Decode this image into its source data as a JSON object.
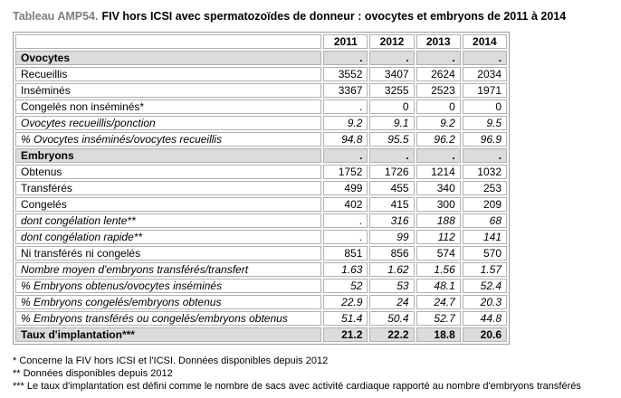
{
  "title": {
    "prefix": "Tableau AMP54.",
    "main": "FIV hors ICSI avec spermatozoïdes de donneur : ovocytes et embryons de 2011 à 2014"
  },
  "table": {
    "corner": "",
    "years": [
      "2011",
      "2012",
      "2013",
      "2014"
    ],
    "rows": [
      {
        "label": "Ovocytes",
        "style": "section",
        "values": [
          ".",
          ".",
          ".",
          "."
        ]
      },
      {
        "label": "Recueillis",
        "style": "normal",
        "values": [
          "3552",
          "3407",
          "2624",
          "2034"
        ]
      },
      {
        "label": "Inséminés",
        "style": "normal",
        "values": [
          "3367",
          "3255",
          "2523",
          "1971"
        ]
      },
      {
        "label": "Congelés non inséminés*",
        "style": "normal",
        "values": [
          ".",
          "0",
          "0",
          "0"
        ]
      },
      {
        "label": "Ovocytes recueillis/ponction",
        "style": "italic",
        "values": [
          "9.2",
          "9.1",
          "9.2",
          "9.5"
        ]
      },
      {
        "label": "% Ovocytes inséminés/ovocytes recueillis",
        "style": "italic",
        "values": [
          "94.8",
          "95.5",
          "96.2",
          "96.9"
        ]
      },
      {
        "label": "Embryons",
        "style": "section",
        "values": [
          ".",
          ".",
          ".",
          "."
        ]
      },
      {
        "label": "Obtenus",
        "style": "normal",
        "values": [
          "1752",
          "1726",
          "1214",
          "1032"
        ]
      },
      {
        "label": "Transférés",
        "style": "normal",
        "values": [
          "499",
          "455",
          "340",
          "253"
        ]
      },
      {
        "label": "Congelés",
        "style": "normal",
        "values": [
          "402",
          "415",
          "300",
          "209"
        ]
      },
      {
        "label": "dont congélation lente**",
        "style": "italic",
        "values": [
          ".",
          "316",
          "188",
          "68"
        ]
      },
      {
        "label": "dont congélation rapide**",
        "style": "italic",
        "values": [
          ".",
          "99",
          "112",
          "141"
        ]
      },
      {
        "label": "Ni transférés ni congelés",
        "style": "normal",
        "values": [
          "851",
          "856",
          "574",
          "570"
        ]
      },
      {
        "label": "Nombre moyen d'embryons transférés/transfert",
        "style": "italic",
        "values": [
          "1.63",
          "1.62",
          "1.56",
          "1.57"
        ]
      },
      {
        "label": "% Embryons obtenus/ovocytes inséminés",
        "style": "italic",
        "values": [
          "52",
          "53",
          "48.1",
          "52.4"
        ]
      },
      {
        "label": "% Embryons congelés/embryons obtenus",
        "style": "italic",
        "values": [
          "22.9",
          "24",
          "24.7",
          "20.3"
        ]
      },
      {
        "label": "% Embryons transférés ou congelés/embryons obtenus",
        "style": "italic",
        "values": [
          "51.4",
          "50.4",
          "52.7",
          "44.8"
        ]
      },
      {
        "label": "Taux d'implantation***",
        "style": "total",
        "values": [
          "21.2",
          "22.2",
          "18.8",
          "20.6"
        ]
      }
    ]
  },
  "footnotes": [
    "* Concerne la FIV hors ICSI et l'ICSI. Données disponibles depuis 2012",
    "** Données disponibles depuis 2012",
    "*** Le taux d'implantation est défini comme le nombre de sacs avec activité cardiaque rapporté au nombre d'embryons transférés"
  ],
  "colors": {
    "title_prefix": "#7f7f7f",
    "section_bg": "#dcdcdc",
    "cell_border": "#b0b0b0",
    "text": "#000000"
  }
}
